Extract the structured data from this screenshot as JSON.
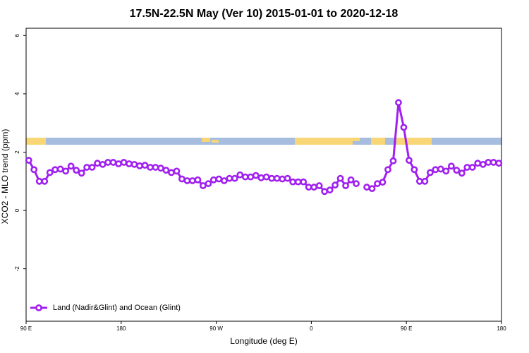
{
  "chart_data": {
    "type": "line",
    "title": "17.5N-22.5N May (Ver 10)   2015-01-01 to 2020-12-18",
    "x_label": "Longitude (deg E)",
    "y_label": "XCO2 - MLO trend (ppm)",
    "x": [
      92.5,
      97.5,
      102.5,
      107.5,
      112.5,
      117.5,
      122.5,
      127.5,
      132.5,
      137.5,
      142.5,
      147.5,
      152.5,
      157.5,
      162.5,
      167.5,
      172.5,
      177.5,
      182.5,
      187.5,
      192.5,
      197.5,
      202.5,
      207.5,
      212.5,
      217.5,
      222.5,
      227.5,
      232.5,
      237.5,
      242.5,
      247.5,
      252.5,
      257.5,
      262.5,
      267.5,
      272.5,
      277.5,
      282.5,
      287.5,
      292.5,
      297.5,
      302.5,
      307.5,
      312.5,
      317.5,
      322.5,
      327.5,
      332.5,
      337.5,
      342.5,
      347.5,
      352.5,
      357.5,
      362.5,
      367.5,
      372.5,
      377.5,
      382.5,
      387.5,
      392.5,
      397.5,
      402.5,
      407.5,
      412.5,
      417.5,
      422.5,
      427.5,
      432.5,
      437.5,
      442.5,
      447.5,
      452.5,
      457.5,
      462.5,
      467.5,
      472.5,
      477.5,
      482.5,
      487.5,
      492.5,
      497.5,
      502.5,
      507.5,
      512.5,
      517.5,
      522.5,
      527.5,
      532.5,
      537.5
    ],
    "series": [
      {
        "name": "Land (Nadir&Glint) and Ocean (Glint)",
        "color": "#a020f0",
        "values": [
          1.72,
          1.4,
          1.0,
          1.0,
          1.3,
          1.4,
          1.42,
          1.35,
          1.52,
          1.38,
          1.28,
          1.48,
          1.48,
          1.62,
          1.58,
          1.65,
          1.65,
          1.6,
          1.65,
          1.6,
          1.58,
          1.53,
          1.55,
          1.48,
          1.48,
          1.45,
          1.38,
          1.3,
          1.35,
          1.08,
          1.02,
          1.02,
          1.05,
          0.85,
          0.92,
          1.05,
          1.08,
          1.02,
          1.1,
          1.1,
          1.22,
          1.15,
          1.15,
          1.2,
          1.12,
          1.15,
          1.1,
          1.1,
          1.08,
          1.1,
          0.98,
          0.98,
          0.98,
          0.8,
          0.8,
          0.85,
          0.65,
          0.7,
          0.87,
          1.1,
          0.85,
          1.05,
          0.92,
          null,
          0.8,
          0.75,
          0.92,
          0.97,
          1.4,
          1.7,
          3.7,
          2.85,
          1.72,
          1.4,
          1.0,
          1.0,
          1.3,
          1.4,
          1.42,
          1.35,
          1.52,
          1.38,
          1.28,
          1.48,
          1.48,
          1.62,
          1.58,
          1.65,
          1.65,
          1.62
        ]
      }
    ],
    "xlim": [
      90,
      540
    ],
    "xticks": [
      {
        "value": 90,
        "label": "90 E"
      },
      180,
      {
        "value": 270,
        "label": "90 W"
      },
      {
        "value": 360,
        "label": "0"
      },
      {
        "value": 450,
        "label": "90 E"
      },
      {
        "value": 540,
        "label": "180"
      }
    ],
    "ylim": [
      -3.8,
      6.25
    ],
    "yticks": [
      -2,
      0,
      2,
      4,
      6
    ],
    "legend": "bottom-left"
  }
}
